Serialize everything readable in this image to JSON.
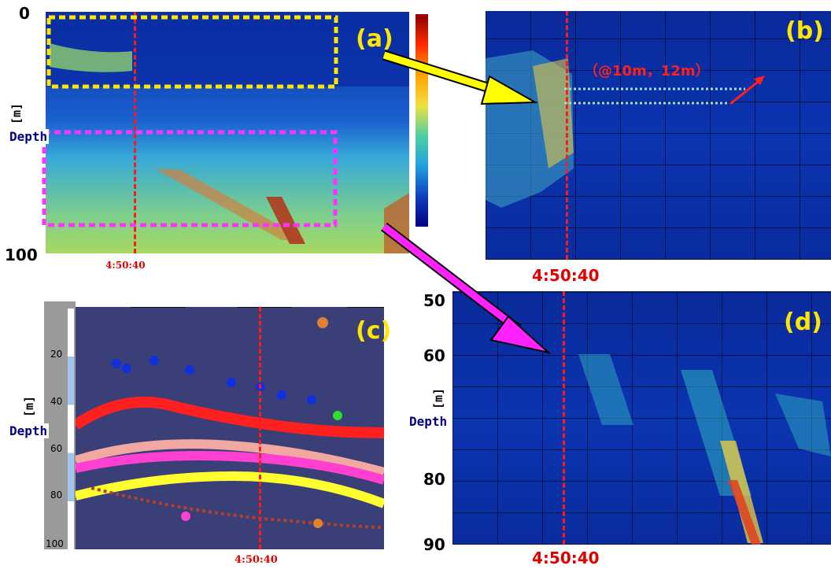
{
  "chart_data": [
    {
      "panel": "(a)",
      "type": "heatmap",
      "ylabel": "Depth",
      "yunit": "[m]",
      "ylim": [
        100,
        0
      ],
      "y_ticks": [
        "0",
        "100"
      ],
      "time_marker": "4:50:40",
      "colorbar": true,
      "highlights": [
        "yellow dashed box: upper layer",
        "magenta dashed box: mid layer"
      ]
    },
    {
      "panel": "(b)",
      "type": "heatmap",
      "annotation": "（@10m，12m）",
      "time_marker": "4:50:40"
    },
    {
      "panel": "(c)",
      "type": "scatter",
      "ylabel": "Depth",
      "yunit": "[m]",
      "ylim": [
        100,
        0
      ],
      "y_ticks": [
        "20",
        "40",
        "60",
        "80",
        "100"
      ],
      "time_marker": "4:50:40"
    },
    {
      "panel": "(d)",
      "type": "heatmap",
      "ylabel": "Depth",
      "yunit": "[m]",
      "ylim": [
        90,
        50
      ],
      "y_ticks": [
        "50",
        "60",
        "80",
        "90"
      ],
      "time_marker": "4:50:40"
    }
  ],
  "colors": {
    "echo_background": "#0b34b0",
    "time_line": "#ff1a1a",
    "label": "#ffe600",
    "yellow_box": "#ffe600",
    "magenta_box": "#ff33ff",
    "scatter_background": "#3a3f78"
  }
}
